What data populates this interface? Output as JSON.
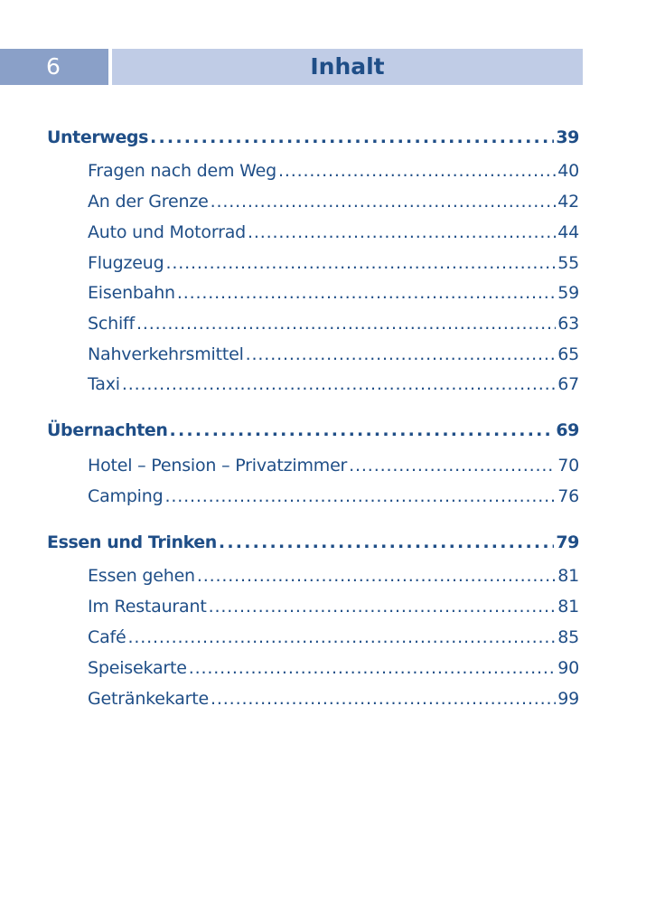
{
  "header": {
    "page_number": "6",
    "title": "Inhalt"
  },
  "toc": [
    {
      "title": "Unterwegs",
      "page": "39",
      "items": [
        {
          "title": "Fragen nach dem Weg",
          "page": "40"
        },
        {
          "title": "An der Grenze",
          "page": "42"
        },
        {
          "title": "Auto und Motorrad",
          "page": "44"
        },
        {
          "title": "Flugzeug",
          "page": "55"
        },
        {
          "title": "Eisenbahn",
          "page": "59"
        },
        {
          "title": "Schiff",
          "page": "63"
        },
        {
          "title": "Nahverkehrsmittel",
          "page": "65"
        },
        {
          "title": "Taxi",
          "page": "67"
        }
      ]
    },
    {
      "title": "Übernachten",
      "page": "69",
      "items": [
        {
          "title": "Hotel – Pension – Privatzimmer",
          "page": "70"
        },
        {
          "title": "Camping",
          "page": "76"
        }
      ]
    },
    {
      "title": "Essen und Trinken",
      "page": "79",
      "items": [
        {
          "title": "Essen gehen",
          "page": "81"
        },
        {
          "title": "Im Restaurant",
          "page": "81"
        },
        {
          "title": "Café",
          "page": "85"
        },
        {
          "title": "Speisekarte",
          "page": "90"
        },
        {
          "title": "Getränkekarte",
          "page": "99"
        }
      ]
    }
  ]
}
